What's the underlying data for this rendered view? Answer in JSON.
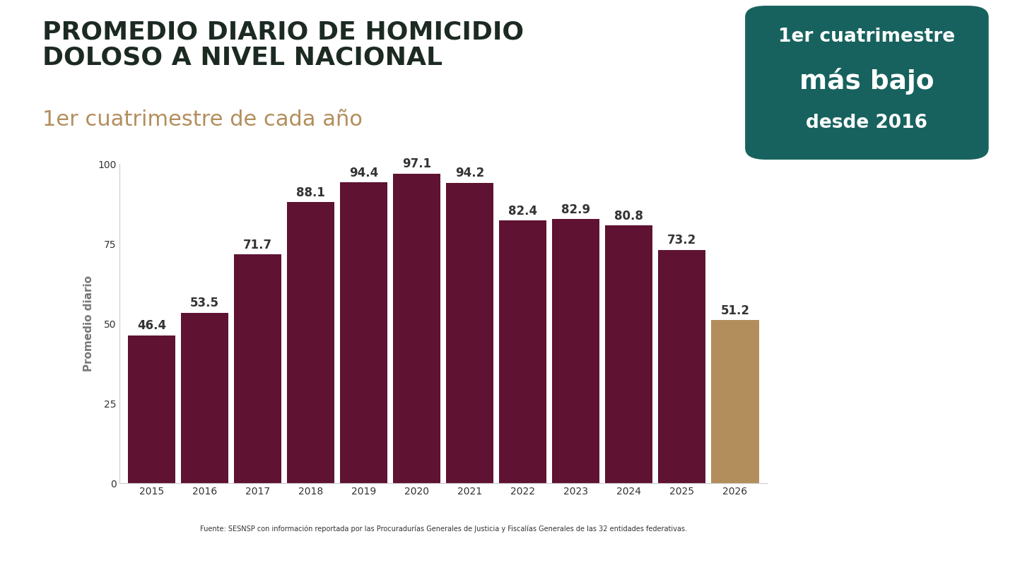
{
  "chart_data": {
    "type": "bar",
    "title": "PROMEDIO DIARIO DE HOMICIDIO\nDOLOSO A NIVEL NACIONAL",
    "subtitle": "1er cuatrimestre de cada año",
    "annotations": [
      "1er cuatrimestre\nmás bajo\ndesde 2016",
      "Fuente: SESNSP con información reportada por las Procuradurías Generales de Justicia y Fiscalías Generales de las 32 entidades federativas."
    ],
    "y_label": "Promedio diario",
    "categories": [
      "2015",
      "2016",
      "2017",
      "2018",
      "2019",
      "2020",
      "2021",
      "2022",
      "2023",
      "2024",
      "2025",
      "2026"
    ],
    "values": [
      46.4,
      53.5,
      71.7,
      88.1,
      94.4,
      97.1,
      94.2,
      82.4,
      82.9,
      80.8,
      73.2,
      51.2
    ],
    "colors": [
      "#5f1232",
      "#5f1232",
      "#5f1232",
      "#5f1232",
      "#5f1232",
      "#5f1232",
      "#5f1232",
      "#5f1232",
      "#5f1232",
      "#5f1232",
      "#5f1232",
      "#b38e5d"
    ],
    "ylim": [
      0,
      100
    ],
    "yticks": [
      0,
      25,
      50,
      75,
      100
    ],
    "grid": false,
    "data_labels": true
  }
}
